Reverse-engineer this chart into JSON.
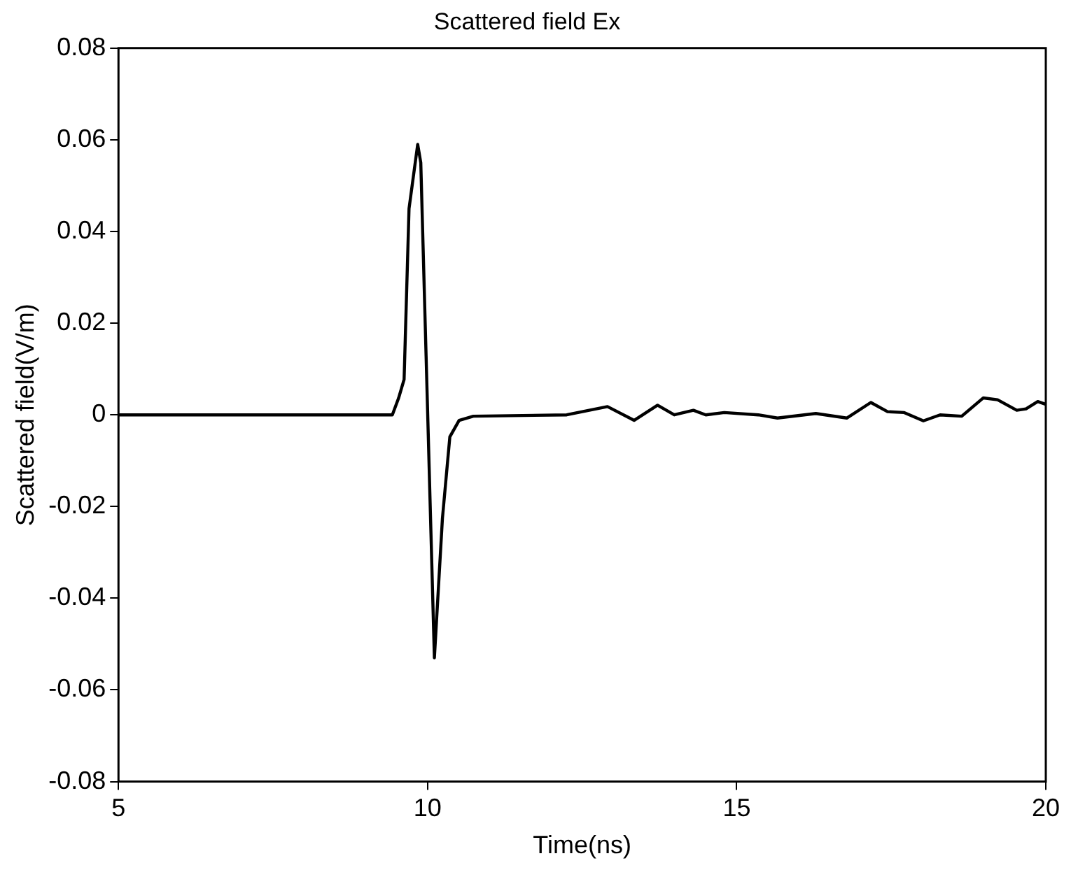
{
  "chart_data": {
    "type": "line",
    "title": "Scattered field Ex",
    "xlabel": "Time(ns)",
    "ylabel": "Scattered field(V/m)",
    "x": [
      5,
      9.43,
      9.53,
      9.62,
      9.7,
      9.84,
      9.89,
      10.11,
      10.24,
      10.36,
      10.51,
      10.74,
      12.25,
      12.91,
      13.34,
      13.72,
      13.99,
      14.3,
      14.5,
      14.8,
      15.35,
      15.66,
      16.28,
      16.78,
      17.17,
      17.44,
      17.71,
      18.02,
      18.29,
      18.64,
      18.99,
      19.22,
      19.53,
      19.68,
      19.87,
      20
    ],
    "series": [
      {
        "color": "#000000",
        "values": [
          0,
          0,
          0.0036,
          0.0077,
          0.045,
          0.059,
          0.055,
          -0.053,
          -0.0226,
          -0.0048,
          -0.0012,
          -0.0003,
          0,
          0.0018,
          -0.0012,
          0.0021,
          0,
          0.001,
          0,
          0.0005,
          0,
          -0.0007,
          0.0003,
          -0.0007,
          0.0027,
          0.0007,
          0.0005,
          -0.0013,
          0,
          -0.0003,
          0.0037,
          0.0033,
          0.001,
          0.0013,
          0.0029,
          0.0023
        ]
      }
    ],
    "xlim": [
      5,
      20
    ],
    "xticks": [
      5,
      10,
      15,
      20
    ],
    "ylim": [
      -0.08,
      0.08
    ],
    "yticks": [
      -0.08,
      -0.06,
      -0.04,
      -0.02,
      0,
      0.02,
      0.04,
      0.06,
      0.08
    ],
    "grid": false,
    "legend": false,
    "marker": "none",
    "line_style": "solid"
  }
}
